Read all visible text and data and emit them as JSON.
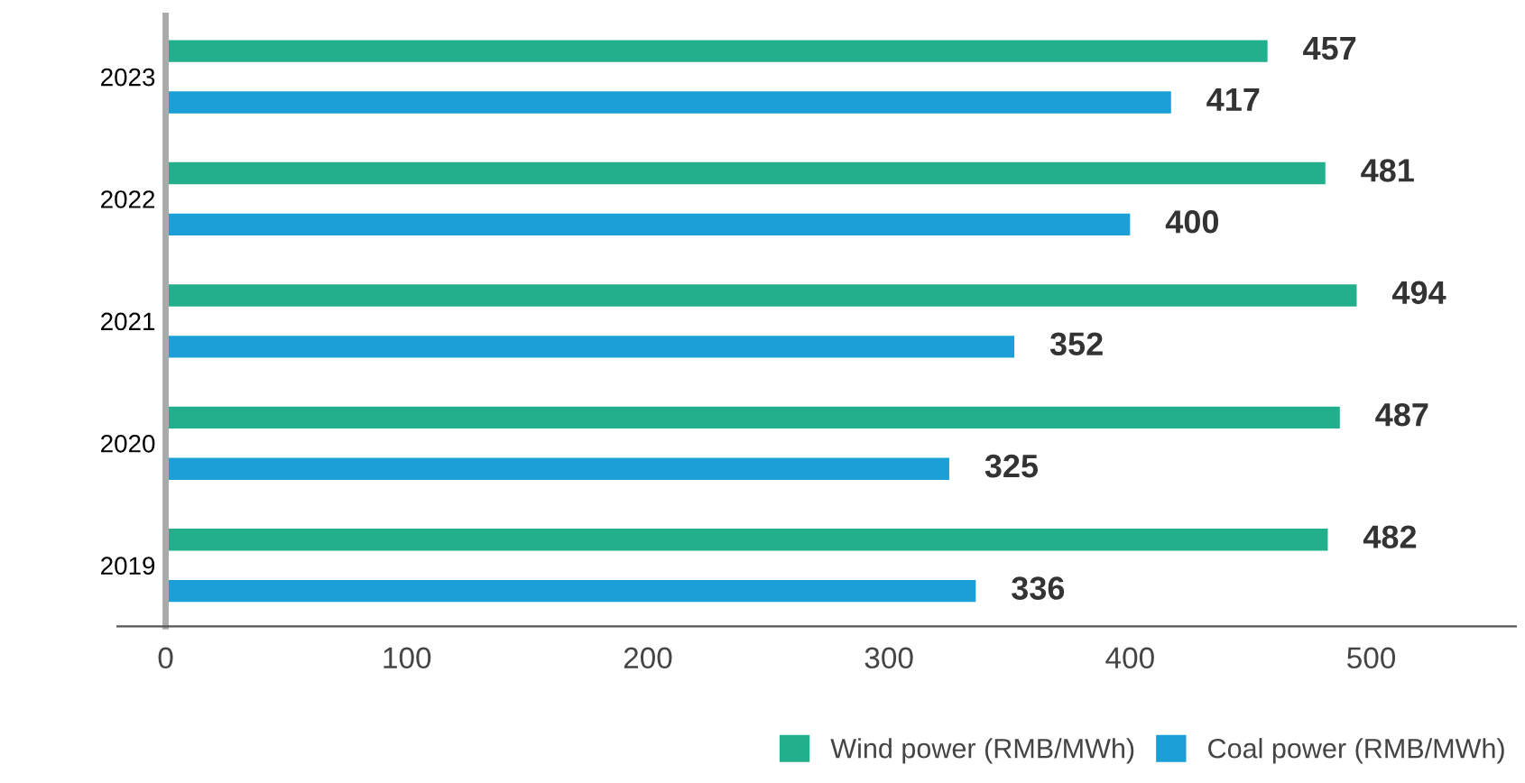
{
  "chart_data": {
    "type": "bar",
    "orientation": "horizontal",
    "categories": [
      "2023",
      "2022",
      "2021",
      "2020",
      "2019"
    ],
    "series": [
      {
        "name": "Wind power (RMB/MWh)",
        "color": "#22b08c",
        "values": [
          457,
          481,
          494,
          487,
          482
        ]
      },
      {
        "name": "Coal power (RMB/MWh)",
        "color": "#1b9fd6",
        "values": [
          417,
          400,
          352,
          325,
          336
        ]
      }
    ],
    "xlim": [
      -20,
      560
    ],
    "xticks": [
      0,
      100,
      200,
      300,
      400,
      500
    ],
    "data_labels": true,
    "legend": "bottom right",
    "grid": false
  }
}
